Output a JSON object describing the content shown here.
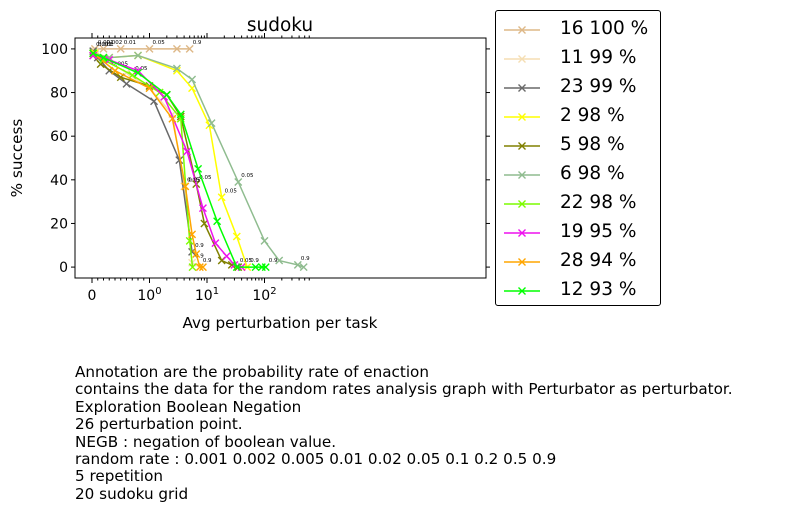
{
  "chart_data": {
    "type": "line",
    "title": "sudoku",
    "xlabel": "Avg perturbation per task",
    "ylabel": "% success",
    "xscale": "symlog",
    "xticks": [
      "0",
      "10^0",
      "10^1",
      "10^2"
    ],
    "yticks": [
      "0",
      "20",
      "40",
      "60",
      "80",
      "100"
    ],
    "ylim": [
      -5,
      105
    ],
    "legend_position": "outside-right",
    "marker": "x",
    "series": [
      {
        "name": "16 100 %",
        "color": "#deb887",
        "x": [
          0.05,
          0.2,
          0.5,
          1.0,
          3.0,
          5.0
        ],
        "y": [
          100,
          100,
          100,
          100,
          100,
          100
        ],
        "labels": [
          "0.001",
          "0.002",
          "0.01",
          "0.05",
          "",
          "0.9"
        ]
      },
      {
        "name": "11 99 %",
        "color": "#f5deb3",
        "x": [
          0.05,
          0.25,
          0.6,
          1.0,
          2.5,
          4.0,
          5.5,
          7.5
        ],
        "y": [
          99,
          95,
          89,
          82,
          70,
          37,
          2,
          0
        ],
        "labels": [
          "0.001",
          "",
          "",
          "",
          "",
          "0.05",
          "0.9",
          ""
        ]
      },
      {
        "name": "23 99 %",
        "color": "#696969",
        "x": [
          0.02,
          0.1,
          0.3,
          0.6,
          1.2,
          3.3,
          5.5
        ],
        "y": [
          99,
          96,
          90,
          84,
          76,
          49,
          7
        ],
        "labels": [
          "0.001",
          "",
          "0.005",
          "",
          "",
          "",
          "0.9"
        ]
      },
      {
        "name": "2 98 %",
        "color": "#ffff00",
        "x": [
          0.05,
          0.3,
          0.8,
          3.0,
          5.5,
          11.0,
          18.0,
          33.0,
          50.0
        ],
        "y": [
          98,
          96,
          97,
          90,
          82,
          65,
          32,
          14,
          0
        ],
        "labels": [
          "",
          "",
          "",
          "",
          "",
          "",
          "0.05",
          "",
          "0.9"
        ]
      },
      {
        "name": "5 98 %",
        "color": "#808000",
        "x": [
          0.02,
          0.15,
          0.5,
          1.0,
          2.0,
          3.5,
          6.5,
          9.0,
          18.0,
          27.0,
          35.0
        ],
        "y": [
          97,
          93,
          87,
          83,
          79,
          69,
          38,
          20,
          3,
          1,
          0
        ],
        "labels": [
          "",
          "",
          "",
          "",
          "",
          "",
          "0.05",
          "",
          "",
          "",
          ""
        ]
      },
      {
        "name": "6 98 %",
        "color": "#8fbc8f",
        "x": [
          0.02,
          0.3,
          0.8,
          3.0,
          5.5,
          12.0,
          35.0,
          100.0,
          180.0,
          380.0,
          480.0
        ],
        "y": [
          98,
          96,
          97,
          91,
          86,
          66,
          39,
          12,
          3,
          1,
          0
        ],
        "labels": [
          "",
          "",
          "",
          "",
          "",
          "",
          "0.05",
          "",
          "",
          "0.9",
          ""
        ]
      },
      {
        "name": "22 98 %",
        "color": "#7cfc00",
        "x": [
          0.02,
          0.2,
          0.7,
          1.5,
          3.5,
          5.0,
          5.6
        ],
        "y": [
          98,
          95,
          88,
          80,
          68,
          12,
          0
        ],
        "labels": [
          "",
          "",
          "0.05",
          "",
          "",
          "",
          ""
        ]
      },
      {
        "name": "19 95 %",
        "color": "#ee11ee",
        "x": [
          0.02,
          0.3,
          0.8,
          1.8,
          4.5,
          8.5,
          14.0,
          22.0,
          30.0,
          40.0
        ],
        "y": [
          97,
          95,
          90,
          78,
          53,
          27,
          11,
          5,
          1,
          0
        ],
        "labels": [
          "",
          "",
          "",
          "",
          "",
          "",
          "",
          "",
          "",
          ""
        ]
      },
      {
        "name": "28 94 %",
        "color": "#ffa500",
        "x": [
          0.02,
          0.4,
          1.0,
          2.5,
          4.2,
          5.5,
          6.5,
          7.5,
          8.5
        ],
        "y": [
          98,
          90,
          82,
          68,
          37,
          15,
          6,
          0,
          0
        ],
        "labels": [
          "",
          "",
          "",
          "",
          "0.05",
          "",
          "",
          "0.9",
          ""
        ]
      },
      {
        "name": "12 93 %",
        "color": "#00ff00",
        "x": [
          0.02,
          0.2,
          0.8,
          2.0,
          3.5,
          7.0,
          15.0,
          33.0,
          70.0,
          90.0,
          105.0
        ],
        "y": [
          98,
          96,
          89,
          79,
          70,
          45,
          21,
          0,
          0,
          0,
          0
        ],
        "labels": [
          "",
          "",
          "",
          "",
          "",
          "",
          "",
          "0.05",
          "",
          "",
          "0.9"
        ]
      }
    ]
  },
  "caption": {
    "lines": [
      "Annotation are the probability rate of enaction",
      "contains the data for the random rates analysis graph with Perturbator as perturbator.",
      "Exploration Boolean Negation",
      "26 perturbation point.",
      "NEGB : negation of boolean value.",
      "random rate : 0.001 0.002 0.005 0.01 0.02 0.05 0.1 0.2 0.5 0.9",
      "5 repetition",
      "20 sudoku grid"
    ]
  }
}
